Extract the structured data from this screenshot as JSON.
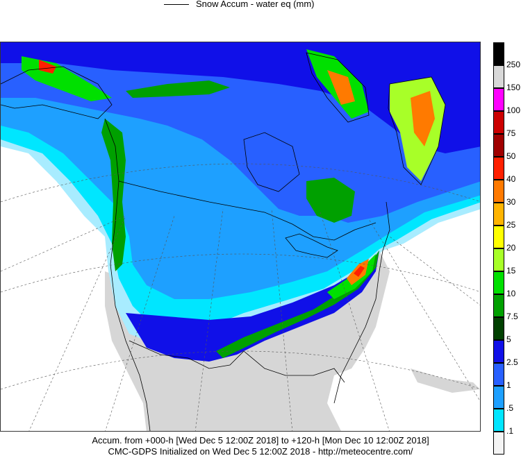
{
  "header": {
    "legend_label": "Snow Accum - water eq (mm)"
  },
  "scale": {
    "labels": [
      "250",
      "150",
      "100",
      "75",
      "50",
      "40",
      "30",
      "25",
      "20",
      "15",
      "10",
      "7.5",
      "5",
      "2.5",
      "1",
      ".5",
      ".1"
    ],
    "colors": [
      "#000000",
      "#d8d8d8",
      "#ff00ff",
      "#cc0000",
      "#a00000",
      "#ff2000",
      "#ff7a00",
      "#ffb400",
      "#ffff00",
      "#a8ff28",
      "#00e000",
      "#00a000",
      "#004000",
      "#1010e8",
      "#2860ff",
      "#1ea0ff",
      "#00e6ff",
      "#f4f4f4"
    ]
  },
  "footer": {
    "line1": "Accum. from +000-h [Wed Dec 5 12:00Z 2018] to +120-h [Mon Dec 10 12:00Z 2018]",
    "line2": "CMC-GDPS Initialized on Wed Dec 5 12:00Z 2018 - http://meteocentre.com/"
  },
  "map": {
    "colors": {
      "land_none": "#d6d6d6",
      "ocean": "#ffffff",
      "trace": "#a8ecff",
      "light": "#00e6ff",
      "mid": "#1ea0ff",
      "blue": "#2860ff",
      "deep": "#1010e8",
      "green_dark": "#00a000",
      "green": "#00e000",
      "lime": "#a8ff28",
      "yellow": "#ffff00",
      "orange": "#ff7a00",
      "red": "#ff2000"
    }
  }
}
